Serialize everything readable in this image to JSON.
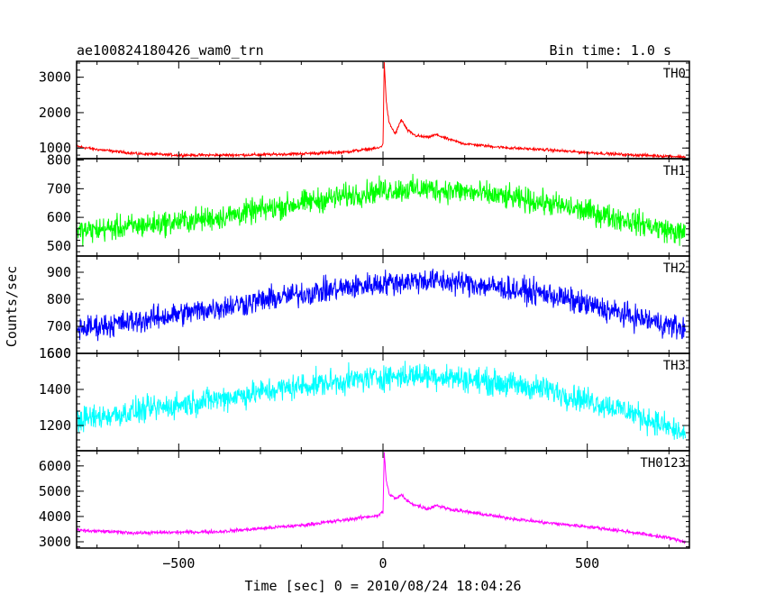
{
  "header": {
    "obs_id": "ae100824180426_wam0_trn",
    "bin_time": "Bin time: 1.0 s"
  },
  "chart_data": {
    "type": "line",
    "xlabel": "Time [sec] 0 = 2010/08/24 18:04:26",
    "ylabel": "Counts/sec",
    "xlim": [
      -750,
      750
    ],
    "xticks": [
      -500,
      0,
      500
    ],
    "xtick_labels": [
      "−500",
      "0",
      "500"
    ],
    "grid": false,
    "panels": [
      {
        "name": "TH0",
        "color": "#ff0000",
        "ylim": [
          700,
          3450
        ],
        "yticks": [
          1000,
          2000,
          3000
        ],
        "ytick_labels": [
          "1000",
          "2000",
          "3000"
        ],
        "x": [
          -750,
          -700,
          -600,
          -500,
          -400,
          -300,
          -200,
          -100,
          -10,
          0,
          3,
          8,
          15,
          30,
          45,
          60,
          80,
          110,
          130,
          160,
          200,
          300,
          400,
          500,
          600,
          700,
          740
        ],
        "values": [
          1050,
          960,
          840,
          800,
          800,
          810,
          840,
          880,
          1000,
          1100,
          3450,
          2300,
          1700,
          1400,
          1800,
          1500,
          1350,
          1300,
          1380,
          1250,
          1120,
          1010,
          950,
          870,
          810,
          770,
          750
        ],
        "noise": 40
      },
      {
        "name": "TH1",
        "color": "#00ff00",
        "ylim": [
          465,
          805
        ],
        "yticks": [
          500,
          600,
          700,
          800
        ],
        "ytick_labels": [
          "500",
          "600",
          "700",
          "800"
        ],
        "x": [
          -750,
          -600,
          -400,
          -200,
          0,
          100,
          200,
          400,
          600,
          740
        ],
        "values": [
          550,
          570,
          600,
          650,
          695,
          700,
          690,
          650,
          590,
          540
        ],
        "noise": 42
      },
      {
        "name": "TH2",
        "color": "#0000ff",
        "ylim": [
          600,
          960
        ],
        "yticks": [
          600,
          700,
          800,
          900
        ],
        "ytick_labels": [
          "600",
          "700",
          "800",
          "900"
        ],
        "x": [
          -750,
          -600,
          -400,
          -200,
          0,
          100,
          200,
          400,
          600,
          740
        ],
        "values": [
          690,
          720,
          770,
          820,
          860,
          870,
          860,
          820,
          740,
          690
        ],
        "noise": 45
      },
      {
        "name": "TH3",
        "color": "#00ffff",
        "ylim": [
          1060,
          1600
        ],
        "yticks": [
          1200,
          1400,
          1600
        ],
        "ytick_labels": [
          "1200",
          "1400",
          "1600"
        ],
        "x": [
          -750,
          -600,
          -400,
          -200,
          0,
          100,
          200,
          400,
          600,
          740
        ],
        "values": [
          1230,
          1280,
          1350,
          1420,
          1470,
          1480,
          1460,
          1400,
          1280,
          1150
        ],
        "noise": 70
      },
      {
        "name": "TH0123",
        "color": "#ff00ff",
        "ylim": [
          2750,
          6600
        ],
        "yticks": [
          3000,
          4000,
          5000,
          6000
        ],
        "ytick_labels": [
          "3000",
          "4000",
          "5000",
          "6000"
        ],
        "x": [
          -750,
          -600,
          -400,
          -200,
          -100,
          -10,
          0,
          3,
          8,
          15,
          30,
          45,
          60,
          80,
          110,
          130,
          160,
          200,
          300,
          400,
          500,
          600,
          700,
          740
        ],
        "values": [
          3450,
          3350,
          3400,
          3650,
          3850,
          4050,
          4200,
          6550,
          5400,
          4900,
          4700,
          4850,
          4600,
          4450,
          4300,
          4450,
          4300,
          4200,
          3950,
          3750,
          3600,
          3400,
          3150,
          3000
        ],
        "noise": 70
      }
    ]
  }
}
